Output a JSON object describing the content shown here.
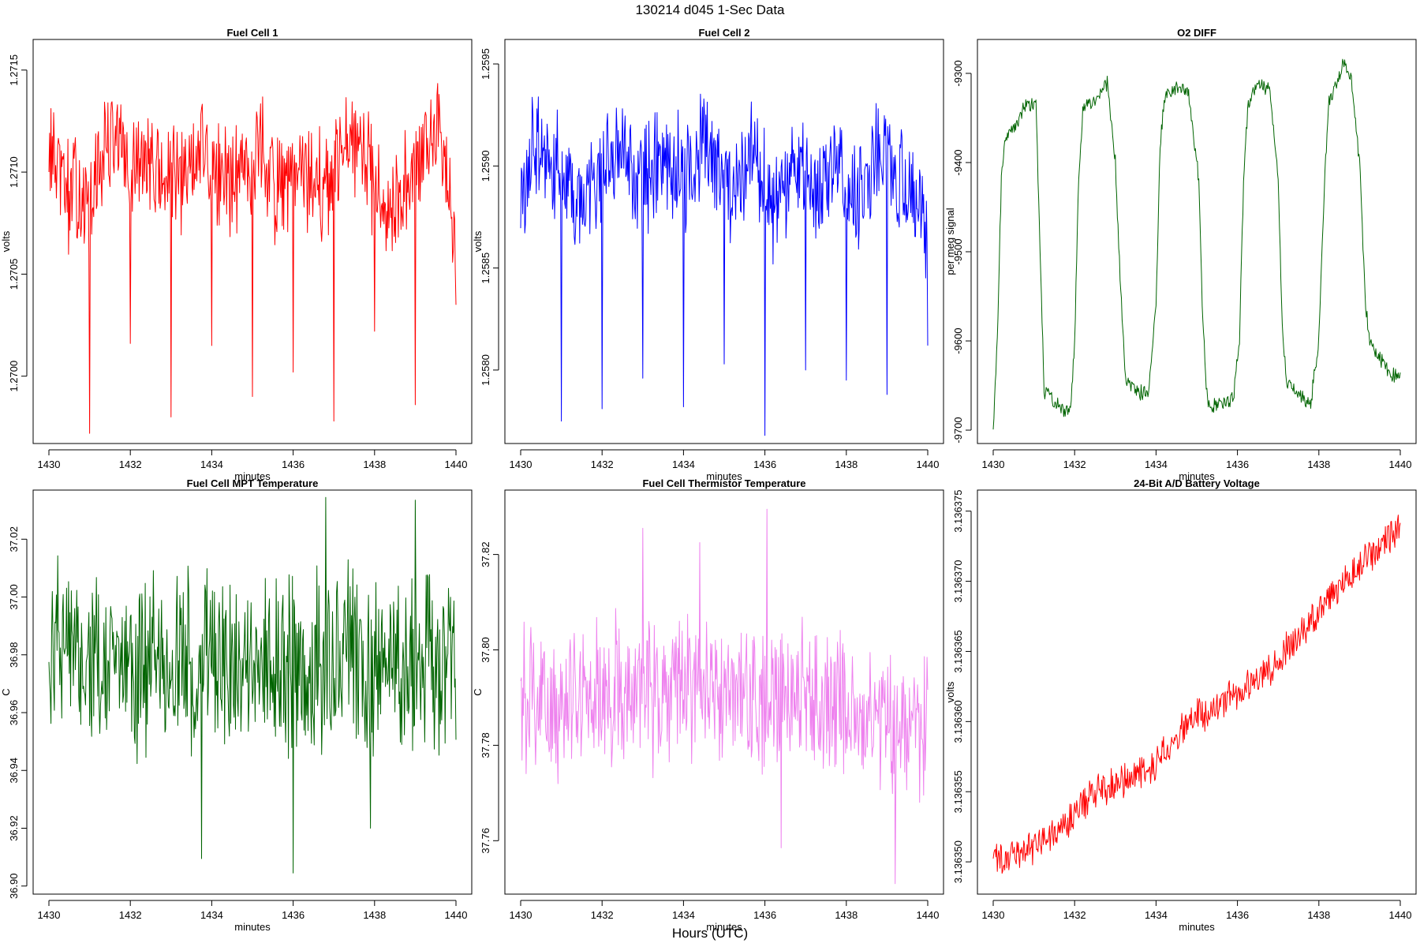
{
  "figure": {
    "title": "130214   d045   1-Sec Data",
    "x_outer_label": "Hours (UTC)"
  },
  "chart_data": [
    {
      "id": "fuel-cell-1",
      "type": "line",
      "title": "Fuel Cell 1",
      "xlabel": "minutes",
      "ylabel": "volts",
      "color": "#ff0000",
      "xlim": [
        1430,
        1440
      ],
      "ylim": [
        1.26967,
        1.27165
      ],
      "xticks": [
        1430,
        1432,
        1434,
        1436,
        1438,
        1440
      ],
      "yticks": [
        1.27,
        1.2705,
        1.271,
        1.2715
      ],
      "ytick_labels": [
        "1.2700",
        "1.2705",
        "1.2710",
        "1.2715"
      ],
      "x": [
        1430.0,
        1430.25,
        1430.5,
        1430.75,
        1431.0,
        1431.25,
        1431.5,
        1431.75,
        1432.0,
        1432.25,
        1432.5,
        1432.75,
        1433.0,
        1433.25,
        1433.5,
        1433.75,
        1434.0,
        1434.25,
        1434.5,
        1434.75,
        1435.0,
        1435.25,
        1435.5,
        1435.75,
        1436.0,
        1436.25,
        1436.5,
        1436.75,
        1437.0,
        1437.25,
        1437.5,
        1437.75,
        1438.0,
        1438.25,
        1438.5,
        1438.75,
        1439.0,
        1439.25,
        1439.5,
        1439.75,
        1440.0
      ],
      "values": [
        1.27112,
        1.27098,
        1.27088,
        1.27092,
        1.27078,
        1.27104,
        1.27118,
        1.27112,
        1.27094,
        1.27106,
        1.27101,
        1.27098,
        1.27096,
        1.27092,
        1.27108,
        1.27113,
        1.27102,
        1.27094,
        1.27099,
        1.27103,
        1.27105,
        1.27112,
        1.27096,
        1.27088,
        1.27094,
        1.271,
        1.27096,
        1.2709,
        1.27098,
        1.27108,
        1.27112,
        1.27104,
        1.27096,
        1.27088,
        1.27084,
        1.27094,
        1.27096,
        1.27112,
        1.27118,
        1.27108,
        1.2707
      ],
      "spikes": [
        [
          1431.0,
          1.26972
        ],
        [
          1432.0,
          1.27016
        ],
        [
          1433.0,
          1.2698
        ],
        [
          1434.0,
          1.27015
        ],
        [
          1435.0,
          1.2699
        ],
        [
          1436.0,
          1.27002
        ],
        [
          1437.0,
          1.26978
        ],
        [
          1438.0,
          1.27022
        ],
        [
          1439.0,
          1.26986
        ],
        [
          1440.0,
          1.27035
        ]
      ]
    },
    {
      "id": "fuel-cell-2",
      "type": "line",
      "title": "Fuel Cell 2",
      "xlabel": "minutes",
      "ylabel": "volts",
      "color": "#0000ff",
      "xlim": [
        1430,
        1440
      ],
      "ylim": [
        1.25764,
        1.25962
      ],
      "xticks": [
        1430,
        1432,
        1434,
        1436,
        1438,
        1440
      ],
      "yticks": [
        1.258,
        1.2585,
        1.259,
        1.2595
      ],
      "ytick_labels": [
        "1.2580",
        "1.2585",
        "1.2590",
        "1.2595"
      ],
      "x": [
        1430.0,
        1430.25,
        1430.5,
        1430.75,
        1431.0,
        1431.25,
        1431.5,
        1431.75,
        1432.0,
        1432.25,
        1432.5,
        1432.75,
        1433.0,
        1433.25,
        1433.5,
        1433.75,
        1434.0,
        1434.25,
        1434.5,
        1434.75,
        1435.0,
        1435.25,
        1435.5,
        1435.75,
        1436.0,
        1436.25,
        1436.5,
        1436.75,
        1437.0,
        1437.25,
        1437.5,
        1437.75,
        1438.0,
        1438.25,
        1438.5,
        1438.75,
        1439.0,
        1439.25,
        1439.5,
        1439.75,
        1440.0
      ],
      "values": [
        1.2588,
        1.25905,
        1.25915,
        1.259,
        1.25895,
        1.25885,
        1.2589,
        1.25895,
        1.259,
        1.25905,
        1.25912,
        1.259,
        1.2589,
        1.259,
        1.25905,
        1.25898,
        1.25895,
        1.259,
        1.2591,
        1.25902,
        1.25895,
        1.25888,
        1.259,
        1.25905,
        1.25895,
        1.2588,
        1.25888,
        1.25902,
        1.25895,
        1.25888,
        1.25892,
        1.259,
        1.25895,
        1.2588,
        1.25892,
        1.25908,
        1.25905,
        1.25895,
        1.25888,
        1.25892,
        1.2586
      ],
      "spikes": [
        [
          1431.0,
          1.25775
        ],
        [
          1432.0,
          1.25781
        ],
        [
          1433.0,
          1.25796
        ],
        [
          1434.0,
          1.25782
        ],
        [
          1435.0,
          1.25803
        ],
        [
          1436.0,
          1.25768
        ],
        [
          1437.0,
          1.258
        ],
        [
          1438.0,
          1.25795
        ],
        [
          1439.0,
          1.25788
        ],
        [
          1440.0,
          1.25812
        ]
      ]
    },
    {
      "id": "o2-diff",
      "type": "line",
      "title": "O2 DIFF",
      "xlabel": "minutes",
      "ylabel": "per meg signal",
      "color": "#006400",
      "xlim": [
        1430,
        1440
      ],
      "ylim": [
        -9715,
        -9262
      ],
      "xticks": [
        1430,
        1432,
        1434,
        1436,
        1438,
        1440
      ],
      "yticks": [
        -9700,
        -9600,
        -9500,
        -9400,
        -9300
      ],
      "ytick_labels": [
        "-9700",
        "-9600",
        "-9500",
        "-9400",
        "-9300"
      ],
      "x": [
        1430.0,
        1430.1,
        1430.2,
        1430.3,
        1430.5,
        1430.8,
        1431.05,
        1431.15,
        1431.25,
        1431.35,
        1431.5,
        1431.7,
        1431.9,
        1432.0,
        1432.1,
        1432.2,
        1432.3,
        1432.5,
        1432.8,
        1433.0,
        1433.15,
        1433.25,
        1433.35,
        1433.5,
        1433.8,
        1434.0,
        1434.1,
        1434.2,
        1434.3,
        1434.5,
        1434.8,
        1435.05,
        1435.15,
        1435.25,
        1435.35,
        1435.6,
        1435.9,
        1436.05,
        1436.15,
        1436.25,
        1436.3,
        1436.5,
        1436.8,
        1437.0,
        1437.1,
        1437.2,
        1437.3,
        1437.5,
        1437.8,
        1438.0,
        1438.15,
        1438.25,
        1438.35,
        1438.6,
        1438.8,
        1439.0,
        1439.15,
        1439.25,
        1439.4,
        1439.6,
        1439.8,
        1440.0
      ],
      "values": [
        -9698,
        -9600,
        -9420,
        -9370,
        -9362,
        -9335,
        -9335,
        -9500,
        -9655,
        -9660,
        -9668,
        -9675,
        -9680,
        -9600,
        -9420,
        -9340,
        -9335,
        -9330,
        -9310,
        -9400,
        -9560,
        -9640,
        -9650,
        -9655,
        -9660,
        -9560,
        -9380,
        -9330,
        -9320,
        -9315,
        -9320,
        -9420,
        -9580,
        -9660,
        -9675,
        -9670,
        -9665,
        -9600,
        -9420,
        -9340,
        -9330,
        -9312,
        -9320,
        -9420,
        -9580,
        -9645,
        -9650,
        -9660,
        -9670,
        -9600,
        -9410,
        -9330,
        -9325,
        -9290,
        -9305,
        -9400,
        -9560,
        -9600,
        -9612,
        -9625,
        -9640,
        -9635
      ],
      "spikes": []
    },
    {
      "id": "fuel-cell-mpt-temperature",
      "type": "line",
      "title": "Fuel Cell MPT Temperature",
      "xlabel": "minutes",
      "ylabel": "C",
      "color": "#006400",
      "xlim": [
        1430,
        1440
      ],
      "ylim": [
        36.8972,
        37.037
      ],
      "xticks": [
        1430,
        1432,
        1434,
        1436,
        1438,
        1440
      ],
      "yticks": [
        36.9,
        36.92,
        36.94,
        36.96,
        36.98,
        37.0,
        37.02
      ],
      "ytick_labels": [
        "36.90",
        "36.92",
        "36.94",
        "36.96",
        "36.98",
        "37.00",
        "37.02"
      ],
      "x": [
        1430.0,
        1430.5,
        1431.0,
        1431.5,
        1432.0,
        1432.5,
        1433.0,
        1433.5,
        1434.0,
        1434.5,
        1435.0,
        1435.5,
        1436.0,
        1436.5,
        1437.0,
        1437.5,
        1438.0,
        1438.5,
        1439.0,
        1439.5,
        1440.0
      ],
      "values": [
        36.98,
        36.978,
        36.976,
        36.979,
        36.975,
        36.981,
        36.978,
        36.976,
        36.98,
        36.977,
        36.979,
        36.978,
        36.975,
        36.98,
        36.979,
        36.977,
        36.978,
        36.976,
        36.979,
        36.977,
        36.972
      ],
      "spikes": [
        [
          1433.75,
          36.9095
        ],
        [
          1436.0,
          36.9045
        ],
        [
          1436.8,
          37.0345
        ],
        [
          1439.0,
          37.0335
        ],
        [
          1437.9,
          36.92
        ]
      ]
    },
    {
      "id": "fuel-cell-thermistor-temperature",
      "type": "line",
      "title": "Fuel Cell Thermistor Temperature",
      "xlabel": "minutes",
      "ylabel": "C",
      "color": "#ee82ee",
      "xlim": [
        1430,
        1440
      ],
      "ylim": [
        37.7488,
        37.8335
      ],
      "xticks": [
        1430,
        1432,
        1434,
        1436,
        1438,
        1440
      ],
      "yticks": [
        37.76,
        37.78,
        37.8,
        37.82
      ],
      "ytick_labels": [
        "37.76",
        "37.78",
        "37.80",
        "37.82"
      ],
      "x": [
        1430.0,
        1430.5,
        1431.0,
        1431.5,
        1432.0,
        1432.5,
        1433.0,
        1433.5,
        1434.0,
        1434.5,
        1435.0,
        1435.5,
        1436.0,
        1436.5,
        1437.0,
        1437.5,
        1438.0,
        1438.5,
        1439.0,
        1439.5,
        1440.0
      ],
      "values": [
        37.793,
        37.79,
        37.789,
        37.791,
        37.79,
        37.792,
        37.791,
        37.79,
        37.793,
        37.792,
        37.79,
        37.789,
        37.791,
        37.79,
        37.789,
        37.788,
        37.788,
        37.787,
        37.786,
        37.783,
        37.781
      ],
      "spikes": [
        [
          1436.05,
          37.8295
        ],
        [
          1439.2,
          37.751
        ],
        [
          1433.0,
          37.8255
        ],
        [
          1434.4,
          37.8225
        ],
        [
          1436.4,
          37.7585
        ]
      ]
    },
    {
      "id": "battery-voltage",
      "type": "line",
      "title": "24-Bit A/D Battery Voltage",
      "xlabel": "minutes",
      "ylabel": "volts",
      "color": "#ff0000",
      "xlim": [
        1430,
        1440
      ],
      "ylim": [
        3.1363477,
        3.1363765
      ],
      "xticks": [
        1430,
        1432,
        1434,
        1436,
        1438,
        1440
      ],
      "yticks": [
        3.13635,
        3.136355,
        3.13636,
        3.136365,
        3.13637,
        3.136375
      ],
      "ytick_labels": [
        "3.136350",
        "3.136355",
        "3.136360",
        "3.136365",
        "3.136370",
        "3.136375"
      ],
      "x": [
        1430.0,
        1430.5,
        1431.0,
        1431.5,
        1432.0,
        1432.5,
        1433.0,
        1433.5,
        1434.0,
        1434.5,
        1435.0,
        1435.5,
        1436.0,
        1436.5,
        1437.0,
        1437.5,
        1438.0,
        1438.5,
        1439.0,
        1439.5,
        1440.0
      ],
      "values": [
        3.13635,
        3.1363505,
        3.136351,
        3.136352,
        3.1363535,
        3.136355,
        3.1363555,
        3.136356,
        3.136357,
        3.136359,
        3.1363605,
        3.136361,
        3.136362,
        3.136363,
        3.1363645,
        3.136366,
        3.136368,
        3.1363695,
        3.136371,
        3.1363725,
        3.136374
      ],
      "spikes": []
    }
  ]
}
